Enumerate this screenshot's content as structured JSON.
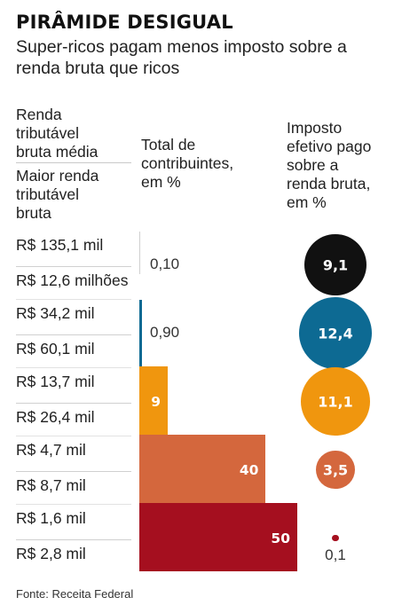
{
  "title": "PIRÂMIDE DESIGUAL",
  "subtitle": "Super-ricos pagam menos imposto sobre a renda bruta que ricos",
  "headers": {
    "col1_a": [
      "Renda",
      "tributável",
      "bruta média"
    ],
    "col1_b": [
      "Maior renda",
      "tributável",
      "bruta"
    ],
    "col2": [
      "Total de",
      "contribuintes,",
      "em %"
    ],
    "col3": [
      "Imposto",
      "efetivo pago",
      "sobre a",
      "renda bruta,",
      "em %"
    ]
  },
  "source": "Fonte: Receita Federal",
  "chart_data": {
    "type": "bar",
    "orientation": "horizontal",
    "categories": [
      {
        "renda_media": "R$ 135,1 mil",
        "maior_renda": "R$ 12,6 milhões"
      },
      {
        "renda_media": "R$ 34,2 mil",
        "maior_renda": "R$ 60,1 mil"
      },
      {
        "renda_media": "R$ 13,7 mil",
        "maior_renda": "R$ 26,4 mil"
      },
      {
        "renda_media": "R$ 4,7 mil",
        "maior_renda": "R$ 8,7 mil"
      },
      {
        "renda_media": "R$ 1,6 mil",
        "maior_renda": "R$ 2,8 mil"
      }
    ],
    "series": [
      {
        "name": "Total de contribuintes, em %",
        "values": [
          0.1,
          0.9,
          9,
          40,
          50
        ],
        "labels": [
          "0,10",
          "0,90",
          "9",
          "40",
          "50"
        ]
      },
      {
        "name": "Imposto efetivo pago sobre a renda bruta, em %",
        "values": [
          9.1,
          12.4,
          11.1,
          3.5,
          0.1
        ],
        "labels": [
          "9,1",
          "12,4",
          "11,1",
          "3,5",
          "0,1"
        ]
      }
    ],
    "colors": [
      "#111111",
      "#0d6a93",
      "#f0960e",
      "#d4673d",
      "#a50f1f"
    ]
  }
}
